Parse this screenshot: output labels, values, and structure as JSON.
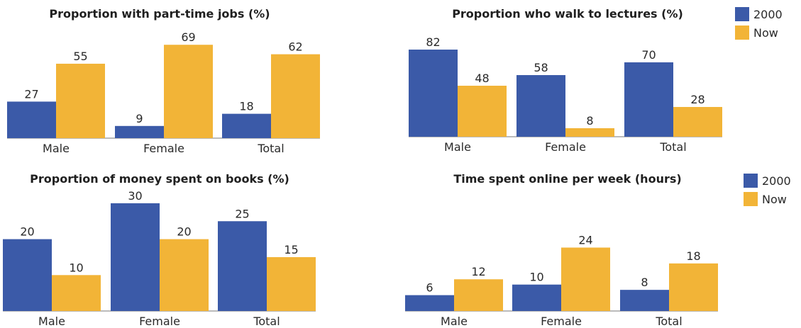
{
  "colors": {
    "series_2000": "#3b5aa8",
    "series_now": "#f2b437",
    "axis": "#777777"
  },
  "legend": [
    {
      "label": "2000",
      "color": "#3b5aa8"
    },
    {
      "label": "Now",
      "color": "#f2b437"
    }
  ],
  "chart_data": [
    {
      "type": "bar",
      "title": "Proportion with part-time jobs (%)",
      "categories": [
        "Male",
        "Female",
        "Total"
      ],
      "series": [
        {
          "name": "2000",
          "values": [
            27,
            9,
            18
          ]
        },
        {
          "name": "Now",
          "values": [
            55,
            69,
            62
          ]
        }
      ],
      "legend": "top-right"
    },
    {
      "type": "bar",
      "title": "Proportion who walk to lectures (%)",
      "categories": [
        "Male",
        "Female",
        "Total"
      ],
      "series": [
        {
          "name": "2000",
          "values": [
            82,
            58,
            70
          ]
        },
        {
          "name": "Now",
          "values": [
            48,
            8,
            28
          ]
        }
      ],
      "legend": "right"
    },
    {
      "type": "bar",
      "title": "Proportion of money spent on books (%)",
      "categories": [
        "Male",
        "Female",
        "Total"
      ],
      "series": [
        {
          "name": "2000",
          "values": [
            20,
            30,
            25
          ]
        },
        {
          "name": "Now",
          "values": [
            10,
            20,
            15
          ]
        }
      ]
    },
    {
      "type": "bar",
      "title": "Time spent online per week (hours)",
      "categories": [
        "Male",
        "Female",
        "Total"
      ],
      "series": [
        {
          "name": "2000",
          "values": [
            6,
            10,
            8
          ]
        },
        {
          "name": "Now",
          "values": [
            12,
            24,
            18
          ]
        }
      ],
      "legend": "right"
    }
  ]
}
